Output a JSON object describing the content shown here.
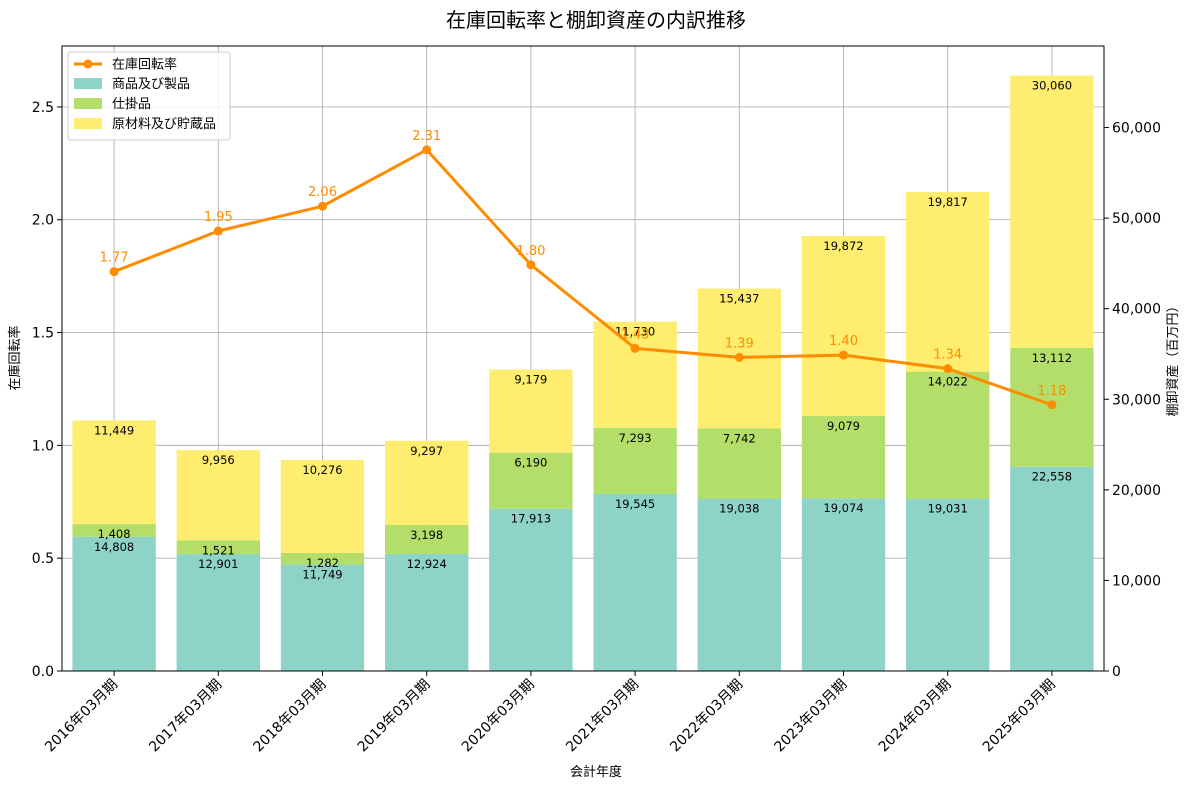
{
  "chart_data": {
    "type": "bar",
    "subtype": "stacked-bar-with-line-secondary-axis",
    "title": "在庫回転率と棚卸資産の内訳推移",
    "xlabel": "会計年度",
    "ylabel_left": "在庫回転率",
    "ylabel_right": "棚卸資産（百万円）",
    "ylim_left": [
      0,
      2.77
    ],
    "ylim_right": [
      0,
      69000
    ],
    "yticks_left": [
      "0.0",
      "0.5",
      "1.0",
      "1.5",
      "2.0",
      "2.5"
    ],
    "yticks_right": [
      "0",
      "10,000",
      "20,000",
      "30,000",
      "40,000",
      "50,000",
      "60,000"
    ],
    "grid": true,
    "legend_position": "top-left",
    "categories": [
      "2016年03月期",
      "2017年03月期",
      "2018年03月期",
      "2019年03月期",
      "2020年03月期",
      "2021年03月期",
      "2022年03月期",
      "2023年03月期",
      "2024年03月期",
      "2025年03月期"
    ],
    "bar_series": [
      {
        "name": "商品及び製品",
        "color": "#8dd3c7",
        "values": [
          14808,
          12901,
          11749,
          12924,
          17913,
          19545,
          19038,
          19074,
          19031,
          22558
        ],
        "labels": [
          "14,808",
          "12,901",
          "11,749",
          "12,924",
          "17,913",
          "19,545",
          "19,038",
          "19,074",
          "19,031",
          "22,558"
        ]
      },
      {
        "name": "仕掛品",
        "color": "#b3de69",
        "values": [
          1408,
          1521,
          1282,
          3198,
          6190,
          7293,
          7742,
          9079,
          14022,
          13112
        ],
        "labels": [
          "1,408",
          "1,521",
          "1,282",
          "3,198",
          "6,190",
          "7,293",
          "7,742",
          "9,079",
          "14,022",
          "13,112"
        ]
      },
      {
        "name": "原材料及び貯蔵品",
        "color": "#ffed6f",
        "values": [
          11449,
          9956,
          10276,
          9297,
          9179,
          11730,
          15437,
          19872,
          19817,
          30060
        ],
        "labels": [
          "11,449",
          "9,956",
          "10,276",
          "9,297",
          "9,179",
          "11,730",
          "15,437",
          "19,872",
          "19,817",
          "30,060"
        ]
      }
    ],
    "line_series": {
      "name": "在庫回転率",
      "color": "#ff8c00",
      "values": [
        1.77,
        1.95,
        2.06,
        2.31,
        1.8,
        1.43,
        1.39,
        1.4,
        1.34,
        1.18
      ],
      "labels": [
        "1.77",
        "1.95",
        "2.06",
        "2.31",
        "1.80",
        "1.43",
        "1.39",
        "1.40",
        "1.34",
        "1.18"
      ]
    }
  }
}
